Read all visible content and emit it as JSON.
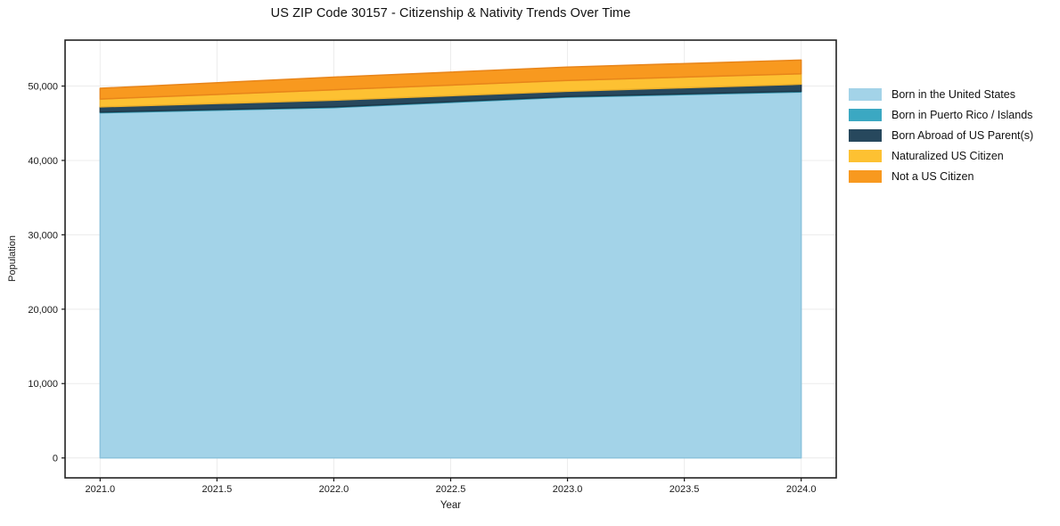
{
  "chart_data": {
    "type": "area",
    "stacked": true,
    "title": "US ZIP Code 30157 - Citizenship & Nativity Trends Over Time",
    "xlabel": "Year",
    "ylabel": "Population",
    "x": [
      2021,
      2022,
      2023,
      2024
    ],
    "series": [
      {
        "name": "Born in the United States",
        "color": "#a3d3e8",
        "edge": "#8cc3dc",
        "values": [
          46400,
          47100,
          48500,
          49200
        ]
      },
      {
        "name": "Born in Puerto Rico / Islands",
        "color": "#3ba8c2",
        "edge": "#3293ab",
        "values": [
          100,
          100,
          100,
          100
        ]
      },
      {
        "name": "Born Abroad of US Parent(s)",
        "color": "#27485d",
        "edge": "#1d3849",
        "values": [
          700,
          900,
          700,
          950
        ]
      },
      {
        "name": "Naturalized US Citizen",
        "color": "#fdc132",
        "edge": "#edb02a",
        "values": [
          1050,
          1400,
          1450,
          1400
        ]
      },
      {
        "name": "Not a US Citizen",
        "color": "#f8991f",
        "edge": "#e8851a",
        "values": [
          1450,
          1700,
          1800,
          1850
        ]
      }
    ],
    "totals": [
      49700,
      51200,
      52550,
      53500
    ],
    "xlim": [
      2020.85,
      2024.15
    ],
    "ylim": [
      -2675,
      56175
    ],
    "xticks": {
      "values": [
        2021.0,
        2021.5,
        2022.0,
        2022.5,
        2023.0,
        2023.5,
        2024.0
      ],
      "labels": [
        "2021.0",
        "2021.5",
        "2022.0",
        "2022.5",
        "2023.0",
        "2023.5",
        "2024.0"
      ]
    },
    "yticks": {
      "values": [
        0,
        10000,
        20000,
        30000,
        40000,
        50000
      ],
      "labels": [
        "0",
        "10,000",
        "20,000",
        "30,000",
        "40,000",
        "50,000"
      ]
    },
    "grid": true,
    "legend_position": "right-outside"
  },
  "style": {
    "background": "#ffffff",
    "grid_color": "#ececec",
    "spine_color": "#222222",
    "tick_color": "#1a1a1a",
    "text_color": "#111111"
  }
}
